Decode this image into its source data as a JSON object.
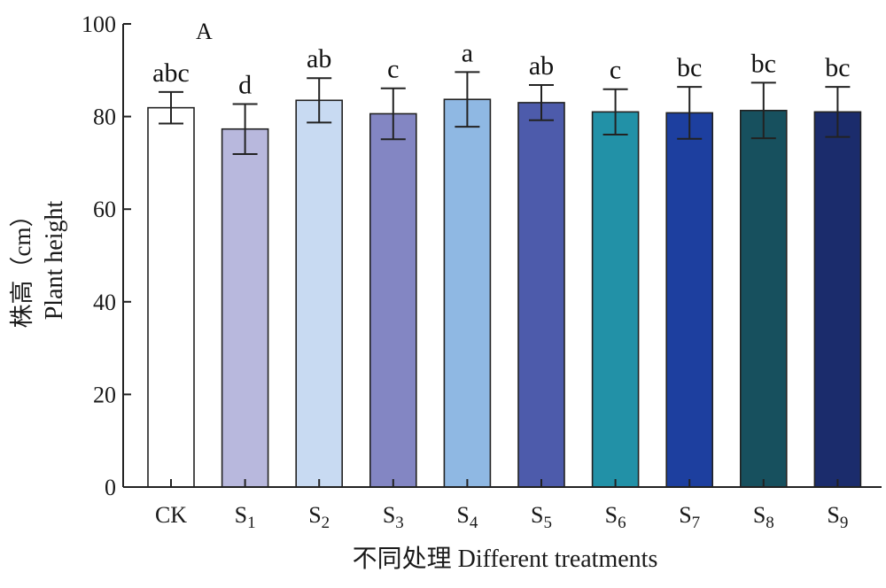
{
  "chart_data": {
    "type": "bar",
    "panel_label": "A",
    "xlabel": "不同处理 Different treatments",
    "ylabel_cn": "株高（cm）",
    "ylabel_en": "Plant height",
    "ylim": [
      0,
      100
    ],
    "yticks": [
      0,
      20,
      40,
      60,
      80,
      100
    ],
    "grid": false,
    "categories": [
      {
        "base": "CK",
        "sub": ""
      },
      {
        "base": "S",
        "sub": "1"
      },
      {
        "base": "S",
        "sub": "2"
      },
      {
        "base": "S",
        "sub": "3"
      },
      {
        "base": "S",
        "sub": "4"
      },
      {
        "base": "S",
        "sub": "5"
      },
      {
        "base": "S",
        "sub": "6"
      },
      {
        "base": "S",
        "sub": "7"
      },
      {
        "base": "S",
        "sub": "8"
      },
      {
        "base": "S",
        "sub": "9"
      }
    ],
    "values": [
      81.9,
      77.3,
      83.5,
      80.6,
      83.7,
      83.0,
      81.0,
      80.8,
      81.3,
      81.0
    ],
    "errors": [
      3.4,
      5.4,
      4.8,
      5.5,
      5.9,
      3.8,
      4.9,
      5.6,
      6.0,
      5.4
    ],
    "significance": [
      "abc",
      "d",
      "ab",
      "c",
      "a",
      "ab",
      "c",
      "bc",
      "bc",
      "bc"
    ],
    "colors": [
      "#ffffff",
      "#b8b8dd",
      "#c8daf2",
      "#8386c3",
      "#8fb8e3",
      "#4d5bab",
      "#2291a7",
      "#1d3f9f",
      "#17505e",
      "#1b2c6c"
    ]
  }
}
